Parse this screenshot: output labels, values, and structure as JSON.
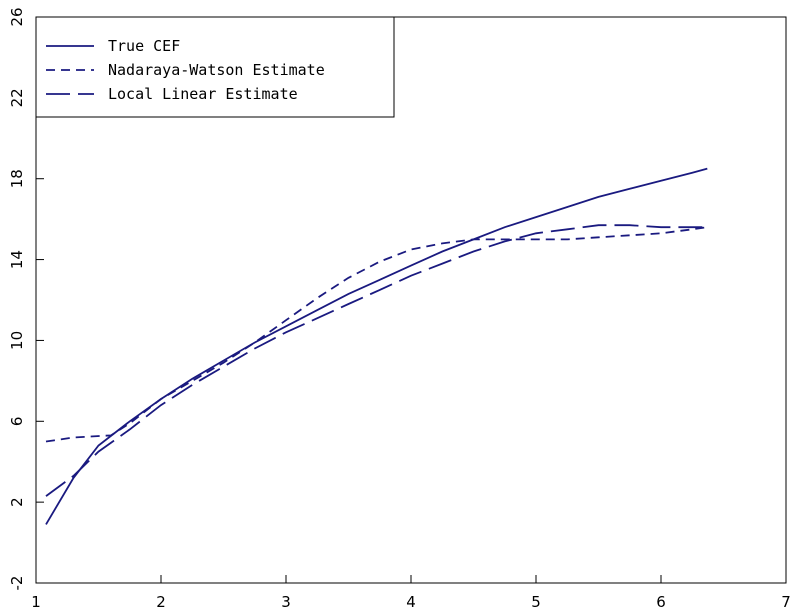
{
  "chart_data": {
    "type": "line",
    "title": "",
    "xlabel": "",
    "ylabel": "",
    "xlim": [
      1,
      7
    ],
    "ylim": [
      -2,
      26
    ],
    "xticks": [
      1,
      2,
      3,
      4,
      5,
      6,
      7
    ],
    "yticks": [
      -2,
      2,
      6,
      10,
      14,
      18,
      22,
      26
    ],
    "grid": false,
    "legend": "top-left",
    "line_color": "#1a1a80",
    "series": [
      {
        "name": "True CEF",
        "style": "solid",
        "x": [
          1.08,
          1.3,
          1.5,
          1.75,
          2.0,
          2.25,
          2.5,
          2.75,
          3.0,
          3.25,
          3.5,
          3.75,
          4.0,
          4.25,
          4.5,
          4.75,
          5.0,
          5.25,
          5.5,
          5.75,
          6.0,
          6.25,
          6.37
        ],
        "y": [
          0.9,
          3.2,
          4.8,
          6.0,
          7.1,
          8.1,
          9.0,
          9.9,
          10.7,
          11.5,
          12.3,
          13.0,
          13.7,
          14.4,
          15.0,
          15.6,
          16.1,
          16.6,
          17.1,
          17.5,
          17.9,
          18.3,
          18.5
        ]
      },
      {
        "name": "Nadaraya-Watson Estimate",
        "style": "dashed",
        "x": [
          1.08,
          1.3,
          1.6,
          1.75,
          2.0,
          2.25,
          2.5,
          2.75,
          3.0,
          3.25,
          3.5,
          3.75,
          4.0,
          4.25,
          4.5,
          4.75,
          5.0,
          5.25,
          5.5,
          5.75,
          6.0,
          6.25,
          6.37
        ],
        "y": [
          5.0,
          5.2,
          5.3,
          5.9,
          7.1,
          8.0,
          8.9,
          9.9,
          11.0,
          12.1,
          13.1,
          13.9,
          14.5,
          14.8,
          15.0,
          15.0,
          15.0,
          15.0,
          15.1,
          15.2,
          15.3,
          15.5,
          15.6
        ]
      },
      {
        "name": "Local Linear Estimate",
        "style": "longdash",
        "x": [
          1.08,
          1.3,
          1.5,
          1.75,
          2.0,
          2.25,
          2.5,
          2.75,
          3.0,
          3.25,
          3.5,
          3.75,
          4.0,
          4.25,
          4.5,
          4.75,
          5.0,
          5.25,
          5.5,
          5.75,
          6.0,
          6.25,
          6.37
        ],
        "y": [
          2.3,
          3.3,
          4.5,
          5.6,
          6.8,
          7.8,
          8.7,
          9.6,
          10.4,
          11.1,
          11.8,
          12.5,
          13.2,
          13.8,
          14.4,
          14.9,
          15.3,
          15.5,
          15.7,
          15.7,
          15.6,
          15.6,
          15.6
        ]
      }
    ]
  }
}
